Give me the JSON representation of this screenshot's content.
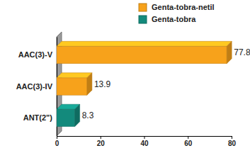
{
  "chart_data": {
    "type": "bar",
    "orientation": "horizontal",
    "categories": [
      "AAC(3)-V",
      "AAC(3)-IV",
      "ANT(2\")"
    ],
    "series": [
      {
        "name": "Genta-tobra-netil",
        "color": "#f7a21b",
        "values": [
          77.8,
          13.9,
          null
        ]
      },
      {
        "name": "Genta-tobra",
        "color": "#138a7c",
        "values": [
          null,
          null,
          8.3
        ]
      }
    ],
    "xlim": [
      0,
      80
    ],
    "xticks": [
      0,
      20,
      40,
      60,
      80
    ],
    "legend": "top-right",
    "data_labels": true,
    "grid": false
  }
}
